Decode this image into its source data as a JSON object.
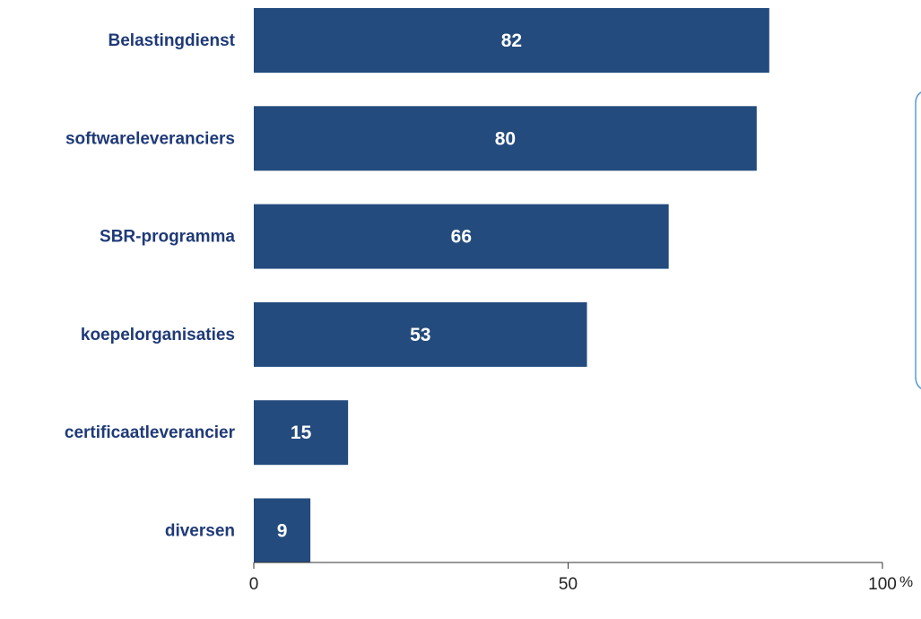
{
  "chart_data": {
    "type": "bar",
    "orientation": "horizontal",
    "categories": [
      "Belastingdienst",
      "softwareleveranciers",
      "SBR-programma",
      "koepelorganisaties",
      "certificaatleverancier",
      "diversen"
    ],
    "values": [
      82,
      80,
      66,
      53,
      15,
      9
    ],
    "data_labels": [
      "82",
      "80",
      "66",
      "53",
      "15",
      "9"
    ],
    "xlim": [
      0,
      100
    ],
    "x_ticks": [
      0,
      50,
      100
    ],
    "x_tick_labels": [
      "0",
      "50",
      "100"
    ],
    "x_unit": "%",
    "title": "",
    "xlabel": "",
    "ylabel": "",
    "grid": false,
    "legend": "none"
  },
  "colors": {
    "bar": "#234B7D",
    "category_text": "#1F3A78",
    "bar_text": "#FFFFFF",
    "axis": "#333333",
    "tick_text": "#222222",
    "callout_border": "#5B9BD5"
  }
}
